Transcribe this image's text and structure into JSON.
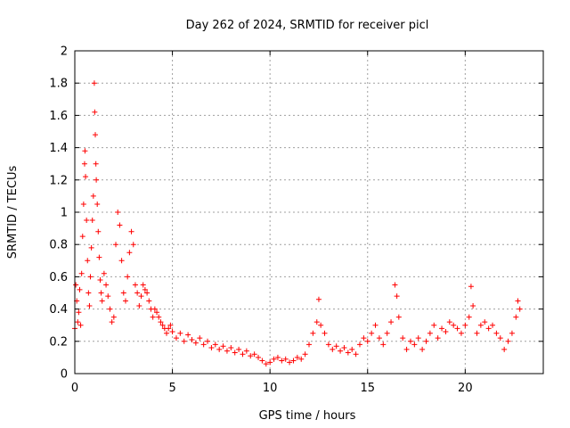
{
  "chart_data": {
    "type": "scatter",
    "title": "Day 262 of 2024, SRMTID for receiver picl",
    "xlabel": "GPS time / hours",
    "ylabel": "SRMTID / TECUs",
    "xlim": [
      0,
      24
    ],
    "ylim": [
      0,
      2
    ],
    "xticks": [
      {
        "value": 0,
        "label": "0"
      },
      {
        "value": 5,
        "label": "5"
      },
      {
        "value": 10,
        "label": "10"
      },
      {
        "value": 15,
        "label": "15"
      },
      {
        "value": 20,
        "label": "20"
      }
    ],
    "yticks": [
      {
        "value": 0,
        "label": "0"
      },
      {
        "value": 0.2,
        "label": "0.2"
      },
      {
        "value": 0.4,
        "label": "0.4"
      },
      {
        "value": 0.6,
        "label": "0.6"
      },
      {
        "value": 0.8,
        "label": "0.8"
      },
      {
        "value": 1.0,
        "label": "1"
      },
      {
        "value": 1.2,
        "label": "1.2"
      },
      {
        "value": 1.4,
        "label": "1.4"
      },
      {
        "value": 1.6,
        "label": "1.6"
      },
      {
        "value": 1.8,
        "label": "1.8"
      },
      {
        "value": 2.0,
        "label": "2"
      }
    ],
    "grid": true,
    "marker": "+",
    "color": "#ff0000",
    "series": [
      {
        "name": "picl",
        "points": [
          [
            0.0,
            0.28
          ],
          [
            0.05,
            0.55
          ],
          [
            0.1,
            0.45
          ],
          [
            0.15,
            0.32
          ],
          [
            0.2,
            0.38
          ],
          [
            0.25,
            0.52
          ],
          [
            0.3,
            0.3
          ],
          [
            0.35,
            0.62
          ],
          [
            0.4,
            0.85
          ],
          [
            0.45,
            1.05
          ],
          [
            0.5,
            1.3
          ],
          [
            0.52,
            1.38
          ],
          [
            0.55,
            1.22
          ],
          [
            0.6,
            0.95
          ],
          [
            0.65,
            0.7
          ],
          [
            0.7,
            0.5
          ],
          [
            0.75,
            0.42
          ],
          [
            0.8,
            0.6
          ],
          [
            0.85,
            0.78
          ],
          [
            0.9,
            0.95
          ],
          [
            0.95,
            1.1
          ],
          [
            1.0,
            1.8
          ],
          [
            1.02,
            1.62
          ],
          [
            1.05,
            1.48
          ],
          [
            1.08,
            1.3
          ],
          [
            1.1,
            1.2
          ],
          [
            1.15,
            1.05
          ],
          [
            1.2,
            0.88
          ],
          [
            1.25,
            0.72
          ],
          [
            1.3,
            0.58
          ],
          [
            1.35,
            0.5
          ],
          [
            1.4,
            0.45
          ],
          [
            1.5,
            0.62
          ],
          [
            1.6,
            0.55
          ],
          [
            1.7,
            0.48
          ],
          [
            1.8,
            0.4
          ],
          [
            1.9,
            0.32
          ],
          [
            2.0,
            0.35
          ],
          [
            2.1,
            0.8
          ],
          [
            2.2,
            1.0
          ],
          [
            2.3,
            0.92
          ],
          [
            2.4,
            0.7
          ],
          [
            2.5,
            0.5
          ],
          [
            2.6,
            0.45
          ],
          [
            2.7,
            0.6
          ],
          [
            2.8,
            0.75
          ],
          [
            2.9,
            0.88
          ],
          [
            3.0,
            0.8
          ],
          [
            3.1,
            0.55
          ],
          [
            3.2,
            0.5
          ],
          [
            3.3,
            0.42
          ],
          [
            3.4,
            0.48
          ],
          [
            3.5,
            0.55
          ],
          [
            3.6,
            0.52
          ],
          [
            3.7,
            0.5
          ],
          [
            3.8,
            0.45
          ],
          [
            3.9,
            0.4
          ],
          [
            4.0,
            0.35
          ],
          [
            4.1,
            0.4
          ],
          [
            4.2,
            0.38
          ],
          [
            4.3,
            0.35
          ],
          [
            4.4,
            0.32
          ],
          [
            4.5,
            0.3
          ],
          [
            4.6,
            0.28
          ],
          [
            4.7,
            0.25
          ],
          [
            4.8,
            0.28
          ],
          [
            4.9,
            0.3
          ],
          [
            5.0,
            0.26
          ],
          [
            5.2,
            0.22
          ],
          [
            5.4,
            0.25
          ],
          [
            5.6,
            0.2
          ],
          [
            5.8,
            0.24
          ],
          [
            6.0,
            0.21
          ],
          [
            6.2,
            0.19
          ],
          [
            6.4,
            0.22
          ],
          [
            6.6,
            0.18
          ],
          [
            6.8,
            0.2
          ],
          [
            7.0,
            0.16
          ],
          [
            7.2,
            0.18
          ],
          [
            7.4,
            0.15
          ],
          [
            7.6,
            0.17
          ],
          [
            7.8,
            0.14
          ],
          [
            8.0,
            0.16
          ],
          [
            8.2,
            0.13
          ],
          [
            8.4,
            0.15
          ],
          [
            8.6,
            0.12
          ],
          [
            8.8,
            0.14
          ],
          [
            9.0,
            0.11
          ],
          [
            9.2,
            0.12
          ],
          [
            9.4,
            0.1
          ],
          [
            9.6,
            0.08
          ],
          [
            9.8,
            0.06
          ],
          [
            10.0,
            0.07
          ],
          [
            10.2,
            0.09
          ],
          [
            10.4,
            0.1
          ],
          [
            10.6,
            0.08
          ],
          [
            10.8,
            0.09
          ],
          [
            11.0,
            0.07
          ],
          [
            11.2,
            0.08
          ],
          [
            11.4,
            0.1
          ],
          [
            11.6,
            0.09
          ],
          [
            11.8,
            0.12
          ],
          [
            12.0,
            0.18
          ],
          [
            12.2,
            0.25
          ],
          [
            12.4,
            0.32
          ],
          [
            12.5,
            0.46
          ],
          [
            12.6,
            0.3
          ],
          [
            12.8,
            0.25
          ],
          [
            13.0,
            0.18
          ],
          [
            13.2,
            0.15
          ],
          [
            13.4,
            0.17
          ],
          [
            13.6,
            0.14
          ],
          [
            13.8,
            0.16
          ],
          [
            14.0,
            0.13
          ],
          [
            14.2,
            0.15
          ],
          [
            14.4,
            0.12
          ],
          [
            14.6,
            0.18
          ],
          [
            14.8,
            0.22
          ],
          [
            15.0,
            0.2
          ],
          [
            15.2,
            0.25
          ],
          [
            15.4,
            0.3
          ],
          [
            15.6,
            0.22
          ],
          [
            15.8,
            0.18
          ],
          [
            16.0,
            0.25
          ],
          [
            16.2,
            0.32
          ],
          [
            16.4,
            0.55
          ],
          [
            16.5,
            0.48
          ],
          [
            16.6,
            0.35
          ],
          [
            16.8,
            0.22
          ],
          [
            17.0,
            0.15
          ],
          [
            17.2,
            0.2
          ],
          [
            17.4,
            0.18
          ],
          [
            17.6,
            0.22
          ],
          [
            17.8,
            0.15
          ],
          [
            18.0,
            0.2
          ],
          [
            18.2,
            0.25
          ],
          [
            18.4,
            0.3
          ],
          [
            18.6,
            0.22
          ],
          [
            18.8,
            0.28
          ],
          [
            19.0,
            0.26
          ],
          [
            19.2,
            0.32
          ],
          [
            19.4,
            0.3
          ],
          [
            19.6,
            0.28
          ],
          [
            19.8,
            0.25
          ],
          [
            20.0,
            0.3
          ],
          [
            20.2,
            0.35
          ],
          [
            20.3,
            0.54
          ],
          [
            20.4,
            0.42
          ],
          [
            20.6,
            0.25
          ],
          [
            20.8,
            0.3
          ],
          [
            21.0,
            0.32
          ],
          [
            21.2,
            0.28
          ],
          [
            21.4,
            0.3
          ],
          [
            21.6,
            0.25
          ],
          [
            21.8,
            0.22
          ],
          [
            22.0,
            0.15
          ],
          [
            22.2,
            0.2
          ],
          [
            22.4,
            0.25
          ],
          [
            22.6,
            0.35
          ],
          [
            22.7,
            0.45
          ],
          [
            22.8,
            0.4
          ]
        ]
      }
    ]
  }
}
